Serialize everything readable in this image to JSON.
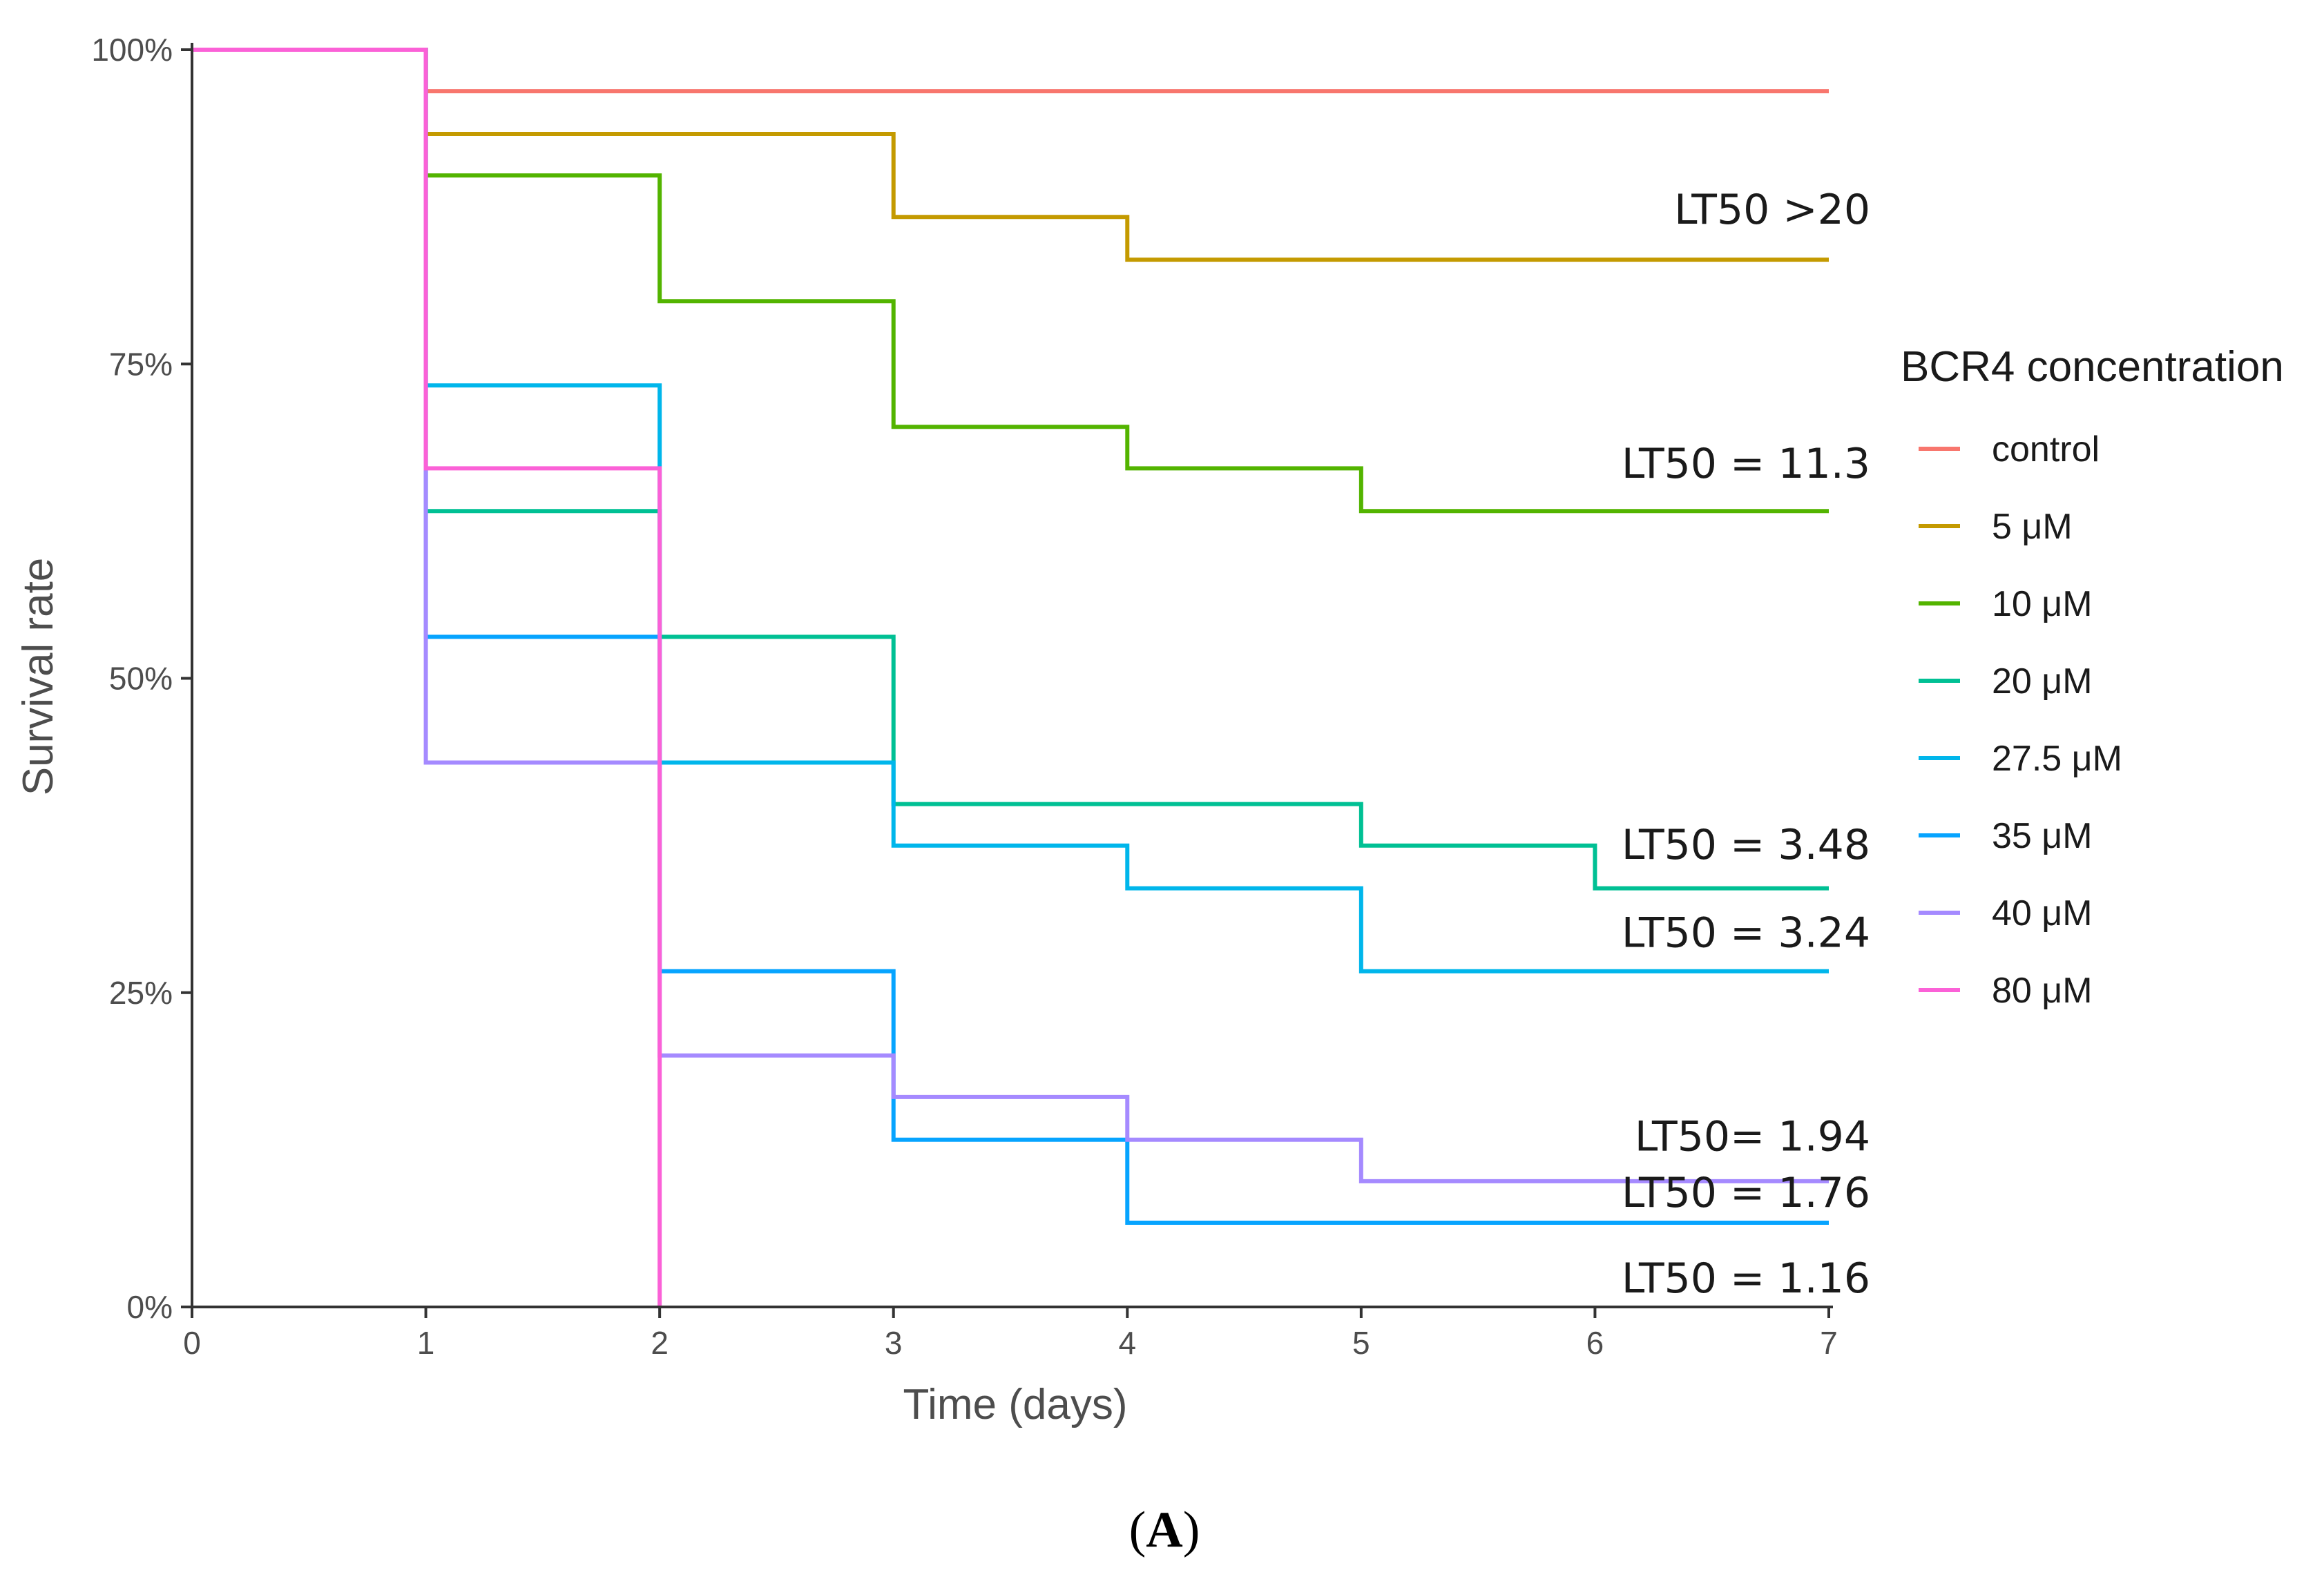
{
  "chart_data": {
    "type": "line",
    "subtype": "step",
    "title": "",
    "xlabel": "Time (days)",
    "ylabel": "Survival rate",
    "xlim": [
      0,
      7
    ],
    "ylim": [
      0,
      1
    ],
    "xticks": [
      "0",
      "1",
      "2",
      "3",
      "4",
      "5",
      "6",
      "7"
    ],
    "yticks": [
      {
        "value": 0,
        "label": "0%"
      },
      {
        "value": 0.25,
        "label": "25%"
      },
      {
        "value": 0.5,
        "label": "50%"
      },
      {
        "value": 0.75,
        "label": "75%"
      },
      {
        "value": 1,
        "label": "100%"
      }
    ],
    "grid": false,
    "legend": {
      "title": "BCR4 concentration",
      "position": "right"
    },
    "series": [
      {
        "name": "control",
        "color": "#F8766D",
        "points": [
          [
            0,
            1
          ],
          [
            1,
            0.967
          ],
          [
            7,
            0.967
          ]
        ]
      },
      {
        "name": "5 μM",
        "color": "#C49A00",
        "points": [
          [
            0,
            1
          ],
          [
            1,
            0.933
          ],
          [
            3,
            0.867
          ],
          [
            4,
            0.833
          ],
          [
            7,
            0.833
          ]
        ]
      },
      {
        "name": "10 μM",
        "color": "#53B400",
        "points": [
          [
            0,
            1
          ],
          [
            1,
            0.9
          ],
          [
            2,
            0.8
          ],
          [
            3,
            0.7
          ],
          [
            4,
            0.667
          ],
          [
            5,
            0.633
          ],
          [
            7,
            0.633
          ]
        ]
      },
      {
        "name": "20 μM",
        "color": "#00C094",
        "points": [
          [
            0,
            1
          ],
          [
            1,
            0.633
          ],
          [
            2,
            0.533
          ],
          [
            3,
            0.4
          ],
          [
            5,
            0.367
          ],
          [
            6,
            0.333
          ],
          [
            7,
            0.333
          ]
        ]
      },
      {
        "name": "27.5 μM",
        "color": "#00B6EB",
        "points": [
          [
            0,
            1
          ],
          [
            1,
            0.733
          ],
          [
            2,
            0.433
          ],
          [
            3,
            0.367
          ],
          [
            4,
            0.333
          ],
          [
            5,
            0.267
          ],
          [
            7,
            0.267
          ]
        ]
      },
      {
        "name": "35 μM",
        "color": "#06A4FF",
        "points": [
          [
            0,
            1
          ],
          [
            1,
            0.533
          ],
          [
            2,
            0.267
          ],
          [
            3,
            0.133
          ],
          [
            4,
            0.067
          ],
          [
            7,
            0.067
          ]
        ]
      },
      {
        "name": "40 μM",
        "color": "#A58AFF",
        "points": [
          [
            0,
            1
          ],
          [
            1,
            0.433
          ],
          [
            2,
            0.2
          ],
          [
            3,
            0.167
          ],
          [
            4,
            0.133
          ],
          [
            5,
            0.1
          ],
          [
            7,
            0.1
          ]
        ]
      },
      {
        "name": "80 μM",
        "color": "#FB61D7",
        "points": [
          [
            0,
            1
          ],
          [
            1,
            0.667
          ],
          [
            2,
            0
          ],
          [
            2,
            0
          ]
        ]
      }
    ],
    "annotations": [
      {
        "text": "LT50 >20",
        "x": 7,
        "y": 0.867
      },
      {
        "text": "LT50 = 11.3",
        "x": 7,
        "y": 0.665
      },
      {
        "text": "LT50 = 3.48",
        "x": 7,
        "y": 0.362
      },
      {
        "text": "LT50 = 3.24",
        "x": 7,
        "y": 0.292
      },
      {
        "text": "LT50= 1.94",
        "x": 7,
        "y": 0.13
      },
      {
        "text": "LT50 = 1.76",
        "x": 7,
        "y": 0.085
      },
      {
        "text": "LT50 = 1.16",
        "x": 7,
        "y": 0.017
      }
    ]
  },
  "caption": {
    "text": "A",
    "open": "(",
    "close": ")"
  }
}
